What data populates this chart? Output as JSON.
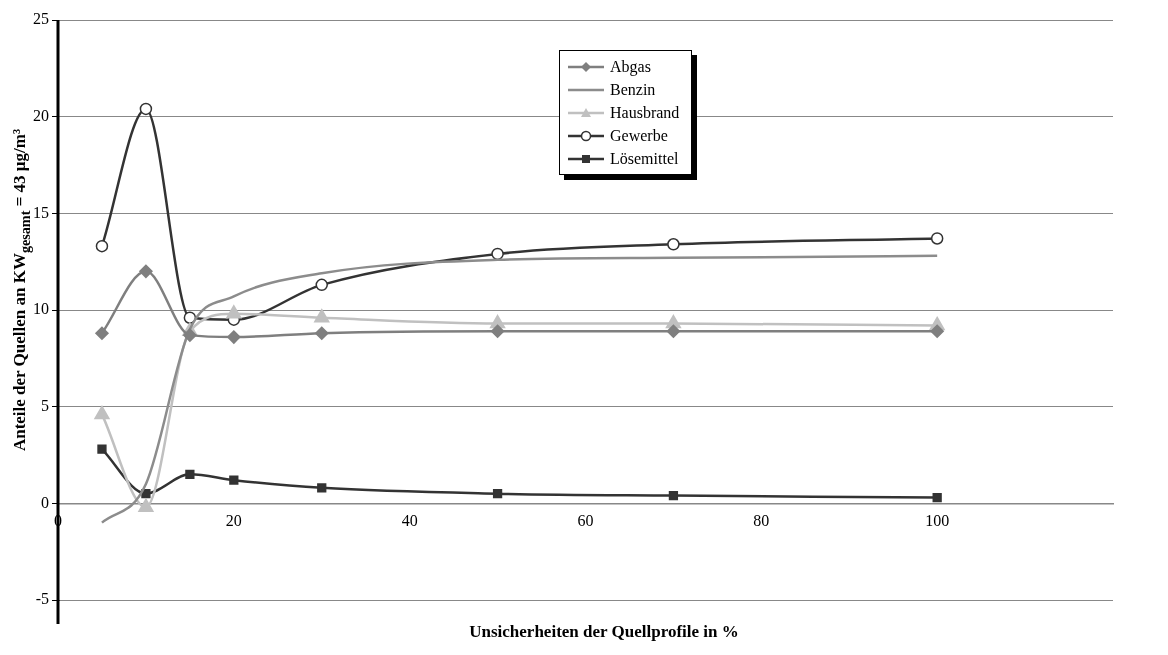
{
  "chart_data": {
    "type": "line",
    "xlabel": "Unsicherheiten der Quellprofile in %",
    "ylabel": "Anteile der Quellen an  KW$_{gesamt}$ = 43 µg/m³",
    "x": [
      5,
      10,
      15,
      20,
      30,
      50,
      70,
      100
    ],
    "series": [
      {
        "name": "Abgas",
        "color": "#7f7f7f",
        "marker": "diamond",
        "values": [
          8.8,
          12.0,
          8.7,
          8.6,
          8.8,
          8.9,
          8.9,
          8.9
        ]
      },
      {
        "name": "Benzin",
        "color": "#8c8c8c",
        "marker": "none",
        "values": [
          -1.0,
          1.0,
          9.0,
          10.7,
          11.9,
          12.6,
          12.7,
          12.8
        ]
      },
      {
        "name": "Hausbrand",
        "color": "#c0c0c0",
        "marker": "triangle",
        "values": [
          4.6,
          -0.2,
          8.9,
          9.8,
          9.6,
          9.3,
          9.3,
          9.2
        ]
      },
      {
        "name": "Gewerbe",
        "color": "#333333",
        "marker": "circle",
        "values": [
          13.3,
          20.4,
          9.6,
          9.5,
          11.3,
          12.9,
          13.4,
          13.7
        ]
      },
      {
        "name": "Lösemittel",
        "color": "#333333",
        "marker": "square",
        "values": [
          2.8,
          0.5,
          1.5,
          1.2,
          0.8,
          0.5,
          0.4,
          0.3
        ]
      }
    ],
    "xlim": [
      0,
      120
    ],
    "xticks": [
      0,
      20,
      40,
      60,
      80,
      100
    ],
    "ylim": [
      -5,
      25
    ],
    "yticks": [
      -5,
      0,
      5,
      10,
      15,
      20,
      25
    ],
    "grid": "y",
    "legend": "top",
    "line_style": "solid"
  }
}
